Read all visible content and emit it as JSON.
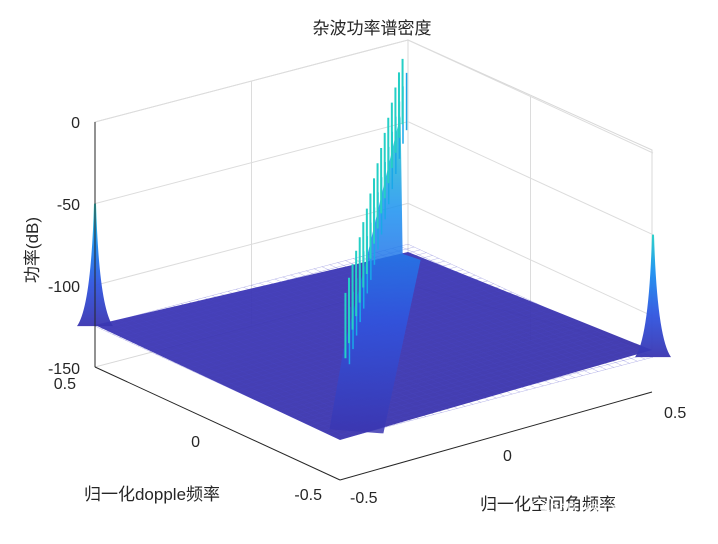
{
  "chart_data": {
    "type": "surface3d",
    "title": "杂波功率谱密度",
    "xlabel": "归一化dopple频率",
    "ylabel": "归一化空间角频率",
    "zlabel": "功率(dB)",
    "x_ticks": [
      "0.5",
      "0",
      "-0.5"
    ],
    "y_ticks": [
      "-0.5",
      "0",
      "0.5"
    ],
    "z_ticks": [
      "0",
      "-50",
      "-100",
      "-150"
    ],
    "xlim": [
      -0.5,
      0.5
    ],
    "ylim": [
      -0.5,
      0.5
    ],
    "zlim": [
      -150,
      0
    ],
    "grid": true,
    "floor_db": -125,
    "colormap": [
      "#3a35b0",
      "#2f55e0",
      "#1a90f0",
      "#19c0e0",
      "#24d0c8"
    ],
    "ridge": {
      "description_line": "spatial frequency equals doppler frequency",
      "peaks_db": [
        -45,
        -42,
        -40,
        -38,
        -36,
        -33,
        -31,
        -28,
        -25,
        -22,
        -19,
        -16,
        -13,
        -10,
        -7,
        -4,
        -2
      ]
    },
    "corner_peaks": [
      {
        "x": 0.5,
        "y": -0.5,
        "z": -50
      },
      {
        "x": -0.5,
        "y": 0.5,
        "z": -50
      }
    ],
    "watermark": "知乎 @DearArturia"
  }
}
